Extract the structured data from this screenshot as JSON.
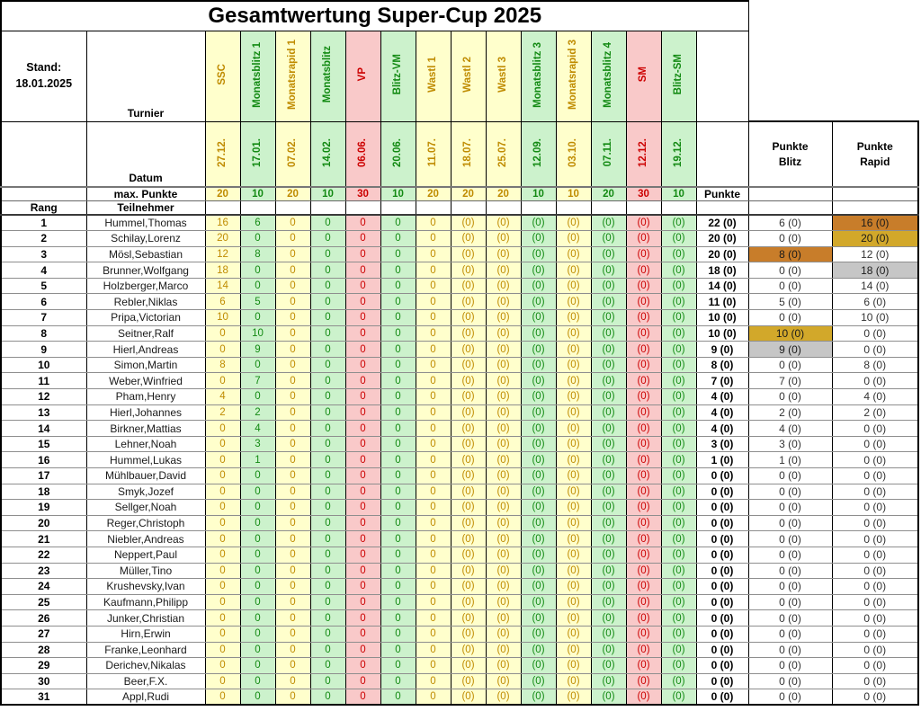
{
  "title": "Gesamtwertung Super-Cup 2025",
  "stand": {
    "label": "Stand:",
    "date": "18.01.2025"
  },
  "labels": {
    "turnier": "Turnier",
    "datum": "Datum",
    "max_punkte": "max. Punkte",
    "punkte": "Punkte",
    "rang": "Rang",
    "teilnehmer": "Teilnehmer",
    "punkte_blitz": "Punkte\nBlitz",
    "punkte_rapid": "Punkte\nRapid"
  },
  "colors": {
    "rapid_bg": "#ffffcc",
    "rapid_text": "#bf8b00",
    "blitz_bg": "#ccf2cc",
    "blitz_text": "#138a13",
    "special_bg": "#f9c9c9",
    "special_text": "#cc0000",
    "gold": "#d2a82a",
    "silver": "#c6c6c6",
    "bronze": "#c87d2a"
  },
  "tournaments": [
    {
      "name": "SSC",
      "date": "27.12.",
      "max": "20",
      "type": "rapid"
    },
    {
      "name": "Monatsblitz 1",
      "date": "17.01.",
      "max": "10",
      "type": "blitz"
    },
    {
      "name": "Monatsrapid 1",
      "date": "07.02.",
      "max": "20",
      "type": "rapid"
    },
    {
      "name": "Monatsblitz",
      "date": "14.02.",
      "max": "10",
      "type": "blitz"
    },
    {
      "name": "VP",
      "date": "06.06.",
      "max": "30",
      "type": "special"
    },
    {
      "name": "Blitz-VM",
      "date": "20.06.",
      "max": "10",
      "type": "blitz"
    },
    {
      "name": "Wastl 1",
      "date": "11.07.",
      "max": "20",
      "type": "rapid"
    },
    {
      "name": "Wastl 2",
      "date": "18.07.",
      "max": "20",
      "type": "rapid"
    },
    {
      "name": "Wastl 3",
      "date": "25.07.",
      "max": "20",
      "type": "rapid"
    },
    {
      "name": "Monatsblitz 3",
      "date": "12.09.",
      "max": "10",
      "type": "blitz"
    },
    {
      "name": "Monatsrapid 3",
      "date": "03.10.",
      "max": "10",
      "type": "rapid"
    },
    {
      "name": "Monatsblitz 4",
      "date": "07.11.",
      "max": "20",
      "type": "blitz"
    },
    {
      "name": "SM",
      "date": "12.12.",
      "max": "30",
      "type": "special"
    },
    {
      "name": "Blitz-SM",
      "date": "19.12.",
      "max": "10",
      "type": "blitz"
    }
  ],
  "players": [
    {
      "rang": "1",
      "name": "Hummel,Thomas",
      "scores": [
        "16",
        "6",
        "0",
        "0",
        "0",
        "0",
        "0",
        "(0)",
        "(0)",
        "(0)",
        "(0)",
        "(0)",
        "(0)",
        "(0)"
      ],
      "punkte": "22 (0)",
      "blitz": "6 (0)",
      "rapid": "16 (0)",
      "rapid_medal": "bronze"
    },
    {
      "rang": "2",
      "name": "Schilay,Lorenz",
      "scores": [
        "20",
        "0",
        "0",
        "0",
        "0",
        "0",
        "0",
        "(0)",
        "(0)",
        "(0)",
        "(0)",
        "(0)",
        "(0)",
        "(0)"
      ],
      "punkte": "20 (0)",
      "blitz": "0 (0)",
      "rapid": "20 (0)",
      "rapid_medal": "gold"
    },
    {
      "rang": "3",
      "name": "Mösl,Sebastian",
      "scores": [
        "12",
        "8",
        "0",
        "0",
        "0",
        "0",
        "0",
        "(0)",
        "(0)",
        "(0)",
        "(0)",
        "(0)",
        "(0)",
        "(0)"
      ],
      "punkte": "20 (0)",
      "blitz": "8 (0)",
      "rapid": "12 (0)",
      "blitz_medal": "bronze"
    },
    {
      "rang": "4",
      "name": "Brunner,Wolfgang",
      "scores": [
        "18",
        "0",
        "0",
        "0",
        "0",
        "0",
        "0",
        "(0)",
        "(0)",
        "(0)",
        "(0)",
        "(0)",
        "(0)",
        "(0)"
      ],
      "punkte": "18 (0)",
      "blitz": "0 (0)",
      "rapid": "18 (0)",
      "rapid_medal": "silver"
    },
    {
      "rang": "5",
      "name": "Holzberger,Marco",
      "scores": [
        "14",
        "0",
        "0",
        "0",
        "0",
        "0",
        "0",
        "(0)",
        "(0)",
        "(0)",
        "(0)",
        "(0)",
        "(0)",
        "(0)"
      ],
      "punkte": "14 (0)",
      "blitz": "0 (0)",
      "rapid": "14 (0)"
    },
    {
      "rang": "6",
      "name": "Rebler,Niklas",
      "scores": [
        "6",
        "5",
        "0",
        "0",
        "0",
        "0",
        "0",
        "(0)",
        "(0)",
        "(0)",
        "(0)",
        "(0)",
        "(0)",
        "(0)"
      ],
      "punkte": "11 (0)",
      "blitz": "5 (0)",
      "rapid": "6 (0)"
    },
    {
      "rang": "7",
      "name": "Pripa,Victorian",
      "scores": [
        "10",
        "0",
        "0",
        "0",
        "0",
        "0",
        "0",
        "(0)",
        "(0)",
        "(0)",
        "(0)",
        "(0)",
        "(0)",
        "(0)"
      ],
      "punkte": "10 (0)",
      "blitz": "0 (0)",
      "rapid": "10 (0)"
    },
    {
      "rang": "8",
      "name": "Seitner,Ralf",
      "scores": [
        "0",
        "10",
        "0",
        "0",
        "0",
        "0",
        "0",
        "(0)",
        "(0)",
        "(0)",
        "(0)",
        "(0)",
        "(0)",
        "(0)"
      ],
      "punkte": "10 (0)",
      "blitz": "10 (0)",
      "rapid": "0 (0)",
      "blitz_medal": "gold"
    },
    {
      "rang": "9",
      "name": "Hierl,Andreas",
      "scores": [
        "0",
        "9",
        "0",
        "0",
        "0",
        "0",
        "0",
        "(0)",
        "(0)",
        "(0)",
        "(0)",
        "(0)",
        "(0)",
        "(0)"
      ],
      "punkte": "9 (0)",
      "blitz": "9 (0)",
      "rapid": "0 (0)",
      "blitz_medal": "silver"
    },
    {
      "rang": "10",
      "name": "Simon,Martin",
      "scores": [
        "8",
        "0",
        "0",
        "0",
        "0",
        "0",
        "0",
        "(0)",
        "(0)",
        "(0)",
        "(0)",
        "(0)",
        "(0)",
        "(0)"
      ],
      "punkte": "8 (0)",
      "blitz": "0 (0)",
      "rapid": "8 (0)"
    },
    {
      "rang": "11",
      "name": "Weber,Winfried",
      "scores": [
        "0",
        "7",
        "0",
        "0",
        "0",
        "0",
        "0",
        "(0)",
        "(0)",
        "(0)",
        "(0)",
        "(0)",
        "(0)",
        "(0)"
      ],
      "punkte": "7 (0)",
      "blitz": "7 (0)",
      "rapid": "0 (0)"
    },
    {
      "rang": "12",
      "name": "Pham,Henry",
      "scores": [
        "4",
        "0",
        "0",
        "0",
        "0",
        "0",
        "0",
        "(0)",
        "(0)",
        "(0)",
        "(0)",
        "(0)",
        "(0)",
        "(0)"
      ],
      "punkte": "4 (0)",
      "blitz": "0 (0)",
      "rapid": "4 (0)"
    },
    {
      "rang": "13",
      "name": "Hierl,Johannes",
      "scores": [
        "2",
        "2",
        "0",
        "0",
        "0",
        "0",
        "0",
        "(0)",
        "(0)",
        "(0)",
        "(0)",
        "(0)",
        "(0)",
        "(0)"
      ],
      "punkte": "4 (0)",
      "blitz": "2 (0)",
      "rapid": "2 (0)"
    },
    {
      "rang": "14",
      "name": "Birkner,Mattias",
      "scores": [
        "0",
        "4",
        "0",
        "0",
        "0",
        "0",
        "0",
        "(0)",
        "(0)",
        "(0)",
        "(0)",
        "(0)",
        "(0)",
        "(0)"
      ],
      "punkte": "4 (0)",
      "blitz": "4 (0)",
      "rapid": "0 (0)"
    },
    {
      "rang": "15",
      "name": "Lehner,Noah",
      "scores": [
        "0",
        "3",
        "0",
        "0",
        "0",
        "0",
        "0",
        "(0)",
        "(0)",
        "(0)",
        "(0)",
        "(0)",
        "(0)",
        "(0)"
      ],
      "punkte": "3 (0)",
      "blitz": "3 (0)",
      "rapid": "0 (0)"
    },
    {
      "rang": "16",
      "name": "Hummel,Lukas",
      "scores": [
        "0",
        "1",
        "0",
        "0",
        "0",
        "0",
        "0",
        "(0)",
        "(0)",
        "(0)",
        "(0)",
        "(0)",
        "(0)",
        "(0)"
      ],
      "punkte": "1 (0)",
      "blitz": "1 (0)",
      "rapid": "0 (0)"
    },
    {
      "rang": "17",
      "name": "Mühlbauer,David",
      "scores": [
        "0",
        "0",
        "0",
        "0",
        "0",
        "0",
        "0",
        "(0)",
        "(0)",
        "(0)",
        "(0)",
        "(0)",
        "(0)",
        "(0)"
      ],
      "punkte": "0 (0)",
      "blitz": "0 (0)",
      "rapid": "0 (0)"
    },
    {
      "rang": "18",
      "name": "Smyk,Jozef",
      "scores": [
        "0",
        "0",
        "0",
        "0",
        "0",
        "0",
        "0",
        "(0)",
        "(0)",
        "(0)",
        "(0)",
        "(0)",
        "(0)",
        "(0)"
      ],
      "punkte": "0 (0)",
      "blitz": "0 (0)",
      "rapid": "0 (0)"
    },
    {
      "rang": "19",
      "name": "Sellger,Noah",
      "scores": [
        "0",
        "0",
        "0",
        "0",
        "0",
        "0",
        "0",
        "(0)",
        "(0)",
        "(0)",
        "(0)",
        "(0)",
        "(0)",
        "(0)"
      ],
      "punkte": "0 (0)",
      "blitz": "0 (0)",
      "rapid": "0 (0)"
    },
    {
      "rang": "20",
      "name": "Reger,Christoph",
      "scores": [
        "0",
        "0",
        "0",
        "0",
        "0",
        "0",
        "0",
        "(0)",
        "(0)",
        "(0)",
        "(0)",
        "(0)",
        "(0)",
        "(0)"
      ],
      "punkte": "0 (0)",
      "blitz": "0 (0)",
      "rapid": "0 (0)"
    },
    {
      "rang": "21",
      "name": "Niebler,Andreas",
      "scores": [
        "0",
        "0",
        "0",
        "0",
        "0",
        "0",
        "0",
        "(0)",
        "(0)",
        "(0)",
        "(0)",
        "(0)",
        "(0)",
        "(0)"
      ],
      "punkte": "0 (0)",
      "blitz": "0 (0)",
      "rapid": "0 (0)"
    },
    {
      "rang": "22",
      "name": "Neppert,Paul",
      "scores": [
        "0",
        "0",
        "0",
        "0",
        "0",
        "0",
        "0",
        "(0)",
        "(0)",
        "(0)",
        "(0)",
        "(0)",
        "(0)",
        "(0)"
      ],
      "punkte": "0 (0)",
      "blitz": "0 (0)",
      "rapid": "0 (0)"
    },
    {
      "rang": "23",
      "name": "Müller,Tino",
      "scores": [
        "0",
        "0",
        "0",
        "0",
        "0",
        "0",
        "0",
        "(0)",
        "(0)",
        "(0)",
        "(0)",
        "(0)",
        "(0)",
        "(0)"
      ],
      "punkte": "0 (0)",
      "blitz": "0 (0)",
      "rapid": "0 (0)"
    },
    {
      "rang": "24",
      "name": "Krushevsky,Ivan",
      "scores": [
        "0",
        "0",
        "0",
        "0",
        "0",
        "0",
        "0",
        "(0)",
        "(0)",
        "(0)",
        "(0)",
        "(0)",
        "(0)",
        "(0)"
      ],
      "punkte": "0 (0)",
      "blitz": "0 (0)",
      "rapid": "0 (0)"
    },
    {
      "rang": "25",
      "name": "Kaufmann,Philipp",
      "scores": [
        "0",
        "0",
        "0",
        "0",
        "0",
        "0",
        "0",
        "(0)",
        "(0)",
        "(0)",
        "(0)",
        "(0)",
        "(0)",
        "(0)"
      ],
      "punkte": "0 (0)",
      "blitz": "0 (0)",
      "rapid": "0 (0)"
    },
    {
      "rang": "26",
      "name": "Junker,Christian",
      "scores": [
        "0",
        "0",
        "0",
        "0",
        "0",
        "0",
        "0",
        "(0)",
        "(0)",
        "(0)",
        "(0)",
        "(0)",
        "(0)",
        "(0)"
      ],
      "punkte": "0 (0)",
      "blitz": "0 (0)",
      "rapid": "0 (0)"
    },
    {
      "rang": "27",
      "name": "Hirn,Erwin",
      "scores": [
        "0",
        "0",
        "0",
        "0",
        "0",
        "0",
        "0",
        "(0)",
        "(0)",
        "(0)",
        "(0)",
        "(0)",
        "(0)",
        "(0)"
      ],
      "punkte": "0 (0)",
      "blitz": "0 (0)",
      "rapid": "0 (0)"
    },
    {
      "rang": "28",
      "name": "Franke,Leonhard",
      "scores": [
        "0",
        "0",
        "0",
        "0",
        "0",
        "0",
        "0",
        "(0)",
        "(0)",
        "(0)",
        "(0)",
        "(0)",
        "(0)",
        "(0)"
      ],
      "punkte": "0 (0)",
      "blitz": "0 (0)",
      "rapid": "0 (0)"
    },
    {
      "rang": "29",
      "name": "Derichev,Nikalas",
      "scores": [
        "0",
        "0",
        "0",
        "0",
        "0",
        "0",
        "0",
        "(0)",
        "(0)",
        "(0)",
        "(0)",
        "(0)",
        "(0)",
        "(0)"
      ],
      "punkte": "0 (0)",
      "blitz": "0 (0)",
      "rapid": "0 (0)"
    },
    {
      "rang": "30",
      "name": "Beer,F.X.",
      "scores": [
        "0",
        "0",
        "0",
        "0",
        "0",
        "0",
        "0",
        "(0)",
        "(0)",
        "(0)",
        "(0)",
        "(0)",
        "(0)",
        "(0)"
      ],
      "punkte": "0 (0)",
      "blitz": "0 (0)",
      "rapid": "0 (0)"
    },
    {
      "rang": "31",
      "name": "Appl,Rudi",
      "scores": [
        "0",
        "0",
        "0",
        "0",
        "0",
        "0",
        "0",
        "(0)",
        "(0)",
        "(0)",
        "(0)",
        "(0)",
        "(0)",
        "(0)"
      ],
      "punkte": "0 (0)",
      "blitz": "0 (0)",
      "rapid": "0 (0)"
    }
  ]
}
